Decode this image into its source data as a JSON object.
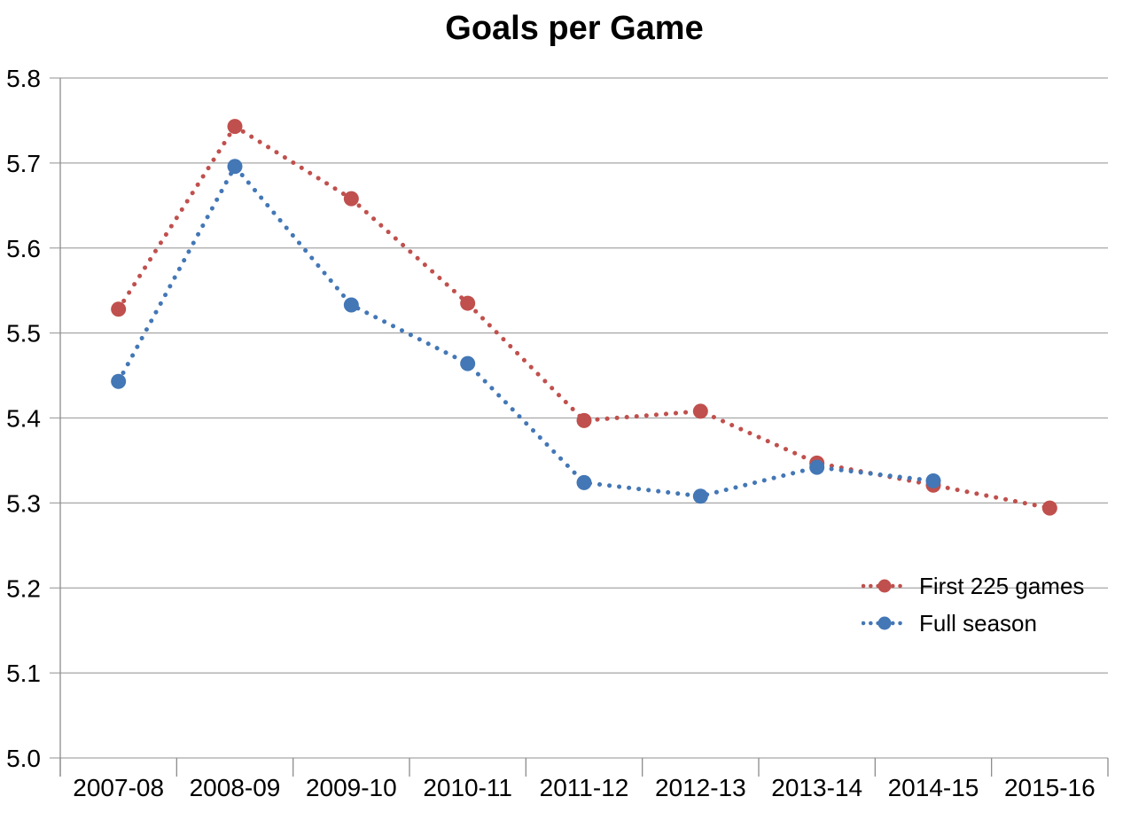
{
  "chart_data": {
    "type": "line",
    "title": "Goals per Game",
    "categories": [
      "2007-08",
      "2008-09",
      "2009-10",
      "2010-11",
      "2011-12",
      "2012-13",
      "2013-14",
      "2014-15",
      "2015-16"
    ],
    "series": [
      {
        "name": "First 225 games",
        "color": "#C0504D",
        "marker": "circle",
        "line_style": "dotted",
        "values": [
          5.528,
          5.743,
          5.658,
          5.535,
          5.397,
          5.408,
          5.347,
          5.321,
          5.294
        ]
      },
      {
        "name": "Full season",
        "color": "#4377B6",
        "marker": "circle",
        "line_style": "dotted",
        "values": [
          5.443,
          5.696,
          5.533,
          5.464,
          5.324,
          5.308,
          5.342,
          5.326,
          null
        ]
      }
    ],
    "xlabel": "",
    "ylabel": "",
    "ylim": [
      5.0,
      5.8
    ],
    "ytick_step": 0.1,
    "y_tick_labels": [
      "5.0",
      "5.1",
      "5.2",
      "5.3",
      "5.4",
      "5.5",
      "5.6",
      "5.7",
      "5.8"
    ],
    "grid": true,
    "legend_position": "inside-right",
    "colors": {
      "gridline": "#A6A6A6",
      "axis": "#8C8C8C",
      "text": "#000000",
      "title": "#000000",
      "background": "#FFFFFF"
    }
  }
}
